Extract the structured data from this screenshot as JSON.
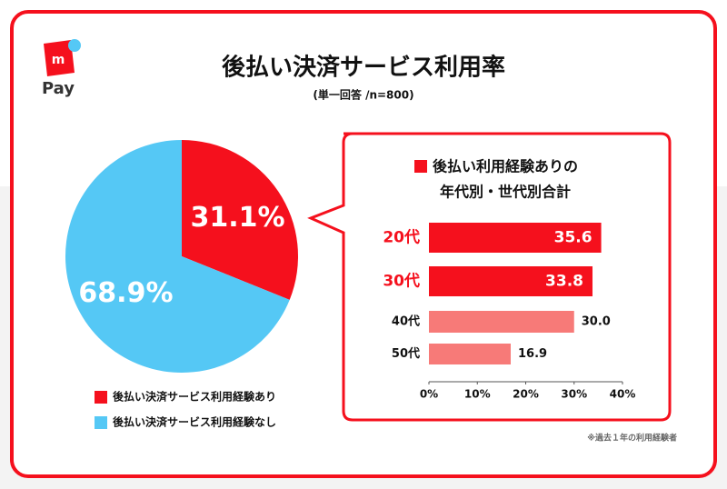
{
  "header": {
    "logo_mark": "m",
    "logo_text": "Pay",
    "title": "後払い決済サービス利用率",
    "subtitle": "(単一回答 /n=800)"
  },
  "chart_data": [
    {
      "type": "pie",
      "categories": [
        "後払い決済サービス利用経験あり",
        "後払い決済サービス利用経験なし"
      ],
      "values": [
        31.1,
        68.9
      ],
      "value_labels": [
        "31.1%",
        "68.9%"
      ],
      "colors": [
        "#f5101d",
        "#55c8f5"
      ]
    },
    {
      "type": "bar",
      "orientation": "horizontal",
      "title": [
        "後払い利用経験ありの",
        "年代別・世代別合計"
      ],
      "categories": [
        "20代",
        "30代",
        "40代",
        "50代"
      ],
      "values": [
        35.6,
        33.8,
        30.0,
        16.9
      ],
      "value_labels": [
        "35.6",
        "33.8",
        "30.0",
        "16.9"
      ],
      "colors": [
        "#f5101d",
        "#f5101d",
        "#f77a78",
        "#f77a78"
      ],
      "highlight": [
        true,
        true,
        false,
        false
      ],
      "xlim": [
        0,
        40
      ],
      "xticks": [
        {
          "value": 0,
          "label": "0%"
        },
        {
          "value": 10,
          "label": "10%"
        },
        {
          "value": 20,
          "label": "20%"
        },
        {
          "value": 30,
          "label": "30%"
        },
        {
          "value": 40,
          "label": "40%"
        }
      ],
      "note": "※過去１年の利用経験者"
    }
  ]
}
